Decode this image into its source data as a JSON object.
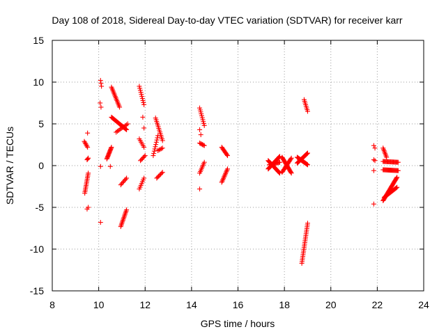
{
  "chart_data": {
    "type": "scatter",
    "title": "Day 108 of 2018, Sidereal Day-to-day VTEC variation (SDTVAR) for receiver karr",
    "xlabel": "GPS time / hours",
    "ylabel": "SDTVAR / TECUs",
    "xlim": [
      8,
      24
    ],
    "ylim": [
      -15,
      15
    ],
    "xticks": [
      8,
      10,
      12,
      14,
      16,
      18,
      20,
      22,
      24
    ],
    "yticks": [
      -15,
      -10,
      -5,
      0,
      5,
      10,
      15
    ],
    "grid": true,
    "marker": "+",
    "color": "#ff0000",
    "segments": [
      {
        "x0": 9.38,
        "y0": 2.9,
        "x1": 9.52,
        "y1": 2.2,
        "n": 6
      },
      {
        "x0": 9.4,
        "y0": -3.3,
        "x1": 9.55,
        "y1": -0.9,
        "n": 14
      },
      {
        "x0": 9.5,
        "y0": 0.7,
        "x1": 9.55,
        "y1": 0.9,
        "n": 3
      },
      {
        "x0": 9.52,
        "y0": 3.9,
        "x1": 9.55,
        "y1": 3.9,
        "n": 1
      },
      {
        "x0": 9.5,
        "y0": -5.2,
        "x1": 9.55,
        "y1": -5.0,
        "n": 2
      },
      {
        "x0": 10.08,
        "y0": 10.2,
        "x1": 10.12,
        "y1": 9.5,
        "n": 3
      },
      {
        "x0": 10.06,
        "y0": 7.5,
        "x1": 10.1,
        "y1": 7.0,
        "n": 2
      },
      {
        "x0": 10.08,
        "y0": -0.1,
        "x1": 10.1,
        "y1": -0.1,
        "n": 1
      },
      {
        "x0": 10.08,
        "y0": -6.8,
        "x1": 10.1,
        "y1": -6.8,
        "n": 1
      },
      {
        "x0": 10.35,
        "y0": 0.8,
        "x1": 10.55,
        "y1": 2.2,
        "n": 14
      },
      {
        "x0": 10.5,
        "y0": -0.1,
        "x1": 10.5,
        "y1": -0.1,
        "n": 1
      },
      {
        "x0": 10.55,
        "y0": 9.4,
        "x1": 10.9,
        "y1": 7.0,
        "n": 16
      },
      {
        "x0": 10.55,
        "y0": 5.8,
        "x1": 11.2,
        "y1": 4.3,
        "n": 26
      },
      {
        "x0": 10.75,
        "y0": 4.0,
        "x1": 11.25,
        "y1": 5.0,
        "n": 10
      },
      {
        "x0": 10.95,
        "y0": -7.3,
        "x1": 11.2,
        "y1": -5.3,
        "n": 14
      },
      {
        "x0": 10.95,
        "y0": -2.3,
        "x1": 11.2,
        "y1": -1.5,
        "n": 7
      },
      {
        "x0": 11.75,
        "y0": 9.5,
        "x1": 11.95,
        "y1": 7.3,
        "n": 10
      },
      {
        "x0": 11.75,
        "y0": 3.2,
        "x1": 11.95,
        "y1": 2.2,
        "n": 6
      },
      {
        "x0": 11.8,
        "y0": 0.6,
        "x1": 12.0,
        "y1": 1.2,
        "n": 6
      },
      {
        "x0": 11.75,
        "y0": -2.8,
        "x1": 11.95,
        "y1": -1.5,
        "n": 7
      },
      {
        "x0": 11.9,
        "y0": 5.8,
        "x1": 11.95,
        "y1": 4.5,
        "n": 2
      },
      {
        "x0": 12.35,
        "y0": 1.2,
        "x1": 12.55,
        "y1": 3.6,
        "n": 10
      },
      {
        "x0": 12.45,
        "y0": 5.7,
        "x1": 12.75,
        "y1": 3.0,
        "n": 14
      },
      {
        "x0": 12.55,
        "y0": 1.8,
        "x1": 12.75,
        "y1": 2.1,
        "n": 5
      },
      {
        "x0": 12.5,
        "y0": -1.5,
        "x1": 12.75,
        "y1": -0.8,
        "n": 7
      },
      {
        "x0": 14.35,
        "y0": 6.9,
        "x1": 14.55,
        "y1": 4.8,
        "n": 10
      },
      {
        "x0": 14.35,
        "y0": 4.3,
        "x1": 14.4,
        "y1": 3.7,
        "n": 2
      },
      {
        "x0": 14.35,
        "y0": 2.7,
        "x1": 14.55,
        "y1": 2.4,
        "n": 6
      },
      {
        "x0": 14.35,
        "y0": -0.9,
        "x1": 14.55,
        "y1": 0.4,
        "n": 8
      },
      {
        "x0": 14.35,
        "y0": -2.8,
        "x1": 14.38,
        "y1": -2.8,
        "n": 1
      },
      {
        "x0": 15.3,
        "y0": 2.2,
        "x1": 15.55,
        "y1": 1.2,
        "n": 10
      },
      {
        "x0": 15.3,
        "y0": -2.0,
        "x1": 15.55,
        "y1": -0.4,
        "n": 12
      },
      {
        "x0": 17.3,
        "y0": -0.4,
        "x1": 17.8,
        "y1": 1.1,
        "n": 26
      },
      {
        "x0": 17.3,
        "y0": 0.6,
        "x1": 17.8,
        "y1": -0.9,
        "n": 24
      },
      {
        "x0": 17.35,
        "y0": 0.1,
        "x1": 17.8,
        "y1": 0.4,
        "n": 14
      },
      {
        "x0": 17.9,
        "y0": 1.0,
        "x1": 18.3,
        "y1": -0.9,
        "n": 20
      },
      {
        "x0": 17.9,
        "y0": -0.8,
        "x1": 18.3,
        "y1": 0.9,
        "n": 16
      },
      {
        "x0": 18.55,
        "y0": 0.3,
        "x1": 19.0,
        "y1": 1.5,
        "n": 22
      },
      {
        "x0": 18.55,
        "y0": 1.0,
        "x1": 19.0,
        "y1": 0.1,
        "n": 18
      },
      {
        "x0": 18.85,
        "y0": 7.9,
        "x1": 19.0,
        "y1": 6.5,
        "n": 8
      },
      {
        "x0": 18.75,
        "y0": -11.7,
        "x1": 19.0,
        "y1": -6.9,
        "n": 24
      },
      {
        "x0": 21.85,
        "y0": 2.4,
        "x1": 21.9,
        "y1": 2.1,
        "n": 2
      },
      {
        "x0": 21.85,
        "y0": 0.7,
        "x1": 21.9,
        "y1": 0.6,
        "n": 2
      },
      {
        "x0": 21.85,
        "y0": -0.6,
        "x1": 21.9,
        "y1": -0.6,
        "n": 1
      },
      {
        "x0": 21.85,
        "y0": -4.6,
        "x1": 21.88,
        "y1": -4.6,
        "n": 1
      },
      {
        "x0": 22.25,
        "y0": 2.1,
        "x1": 22.4,
        "y1": 1.0,
        "n": 8
      },
      {
        "x0": 22.25,
        "y0": 0.5,
        "x1": 22.9,
        "y1": 0.4,
        "n": 20
      },
      {
        "x0": 22.25,
        "y0": -0.5,
        "x1": 22.9,
        "y1": -0.6,
        "n": 22
      },
      {
        "x0": 22.25,
        "y0": -4.2,
        "x1": 22.85,
        "y1": -1.4,
        "n": 30
      },
      {
        "x0": 22.3,
        "y0": -3.8,
        "x1": 22.85,
        "y1": -2.6,
        "n": 20
      }
    ]
  }
}
